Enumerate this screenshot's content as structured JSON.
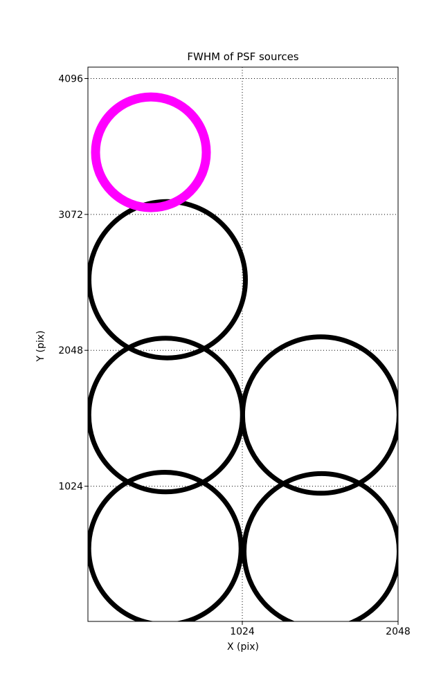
{
  "figure": {
    "background": "#FFFFFF",
    "frame_color": "#000000"
  },
  "chart_data": {
    "type": "scatter",
    "title": "FWHM of PSF sources",
    "xlabel": "X (pix)",
    "ylabel": "Y (pix)",
    "xlim": [
      9,
      2048
    ],
    "ylim": [
      5,
      4182
    ],
    "xticks": [
      1024,
      2048
    ],
    "yticks": [
      1024,
      2048,
      3072,
      4096
    ],
    "xtick_labels": [
      "1024",
      "2048"
    ],
    "ytick_labels": [
      "1024",
      "2048",
      "3072",
      "4096"
    ],
    "grid": true,
    "grid_style": "dotted",
    "grid_color": "#000000",
    "legend": "none",
    "marker_shape": "open-circle",
    "colors": {
      "default_source": "#000000",
      "highlighted_source": "#FF00FF"
    },
    "points": [
      {
        "name": "highlighted-source",
        "x": 423,
        "y": 3540,
        "radius_px": 80,
        "stroke_px": 13,
        "color": "#FF00FF"
      },
      {
        "name": "source-1",
        "x": 530,
        "y": 2580,
        "radius_px": 113,
        "stroke_px": 7,
        "color": "#000000"
      },
      {
        "name": "source-2",
        "x": 520,
        "y": 1560,
        "radius_px": 111,
        "stroke_px": 7,
        "color": "#000000"
      },
      {
        "name": "source-3",
        "x": 1540,
        "y": 1560,
        "radius_px": 113,
        "stroke_px": 7,
        "color": "#000000"
      },
      {
        "name": "source-4",
        "x": 515,
        "y": 555,
        "radius_px": 110,
        "stroke_px": 7,
        "color": "#000000"
      },
      {
        "name": "source-5",
        "x": 1545,
        "y": 535,
        "radius_px": 112,
        "stroke_px": 7,
        "color": "#000000"
      }
    ]
  }
}
